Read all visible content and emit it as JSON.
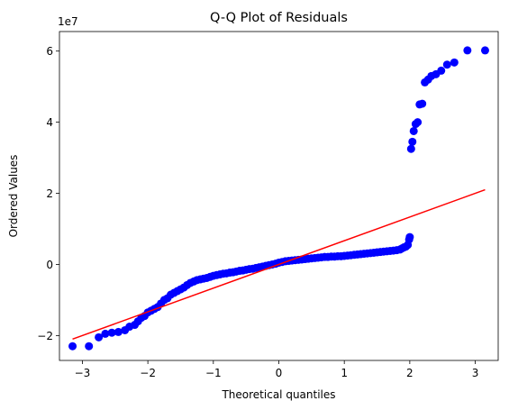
{
  "chart_data": {
    "type": "scatter",
    "title": "Q-Q Plot of Residuals",
    "xlabel": "Theoretical quantiles",
    "ylabel": "Ordered Values",
    "y_offset_text": "1e7",
    "xlim": [
      -3.35,
      3.35
    ],
    "ylim": [
      -2.7,
      6.55
    ],
    "x_ticks": [
      -3,
      -2,
      -1,
      0,
      1,
      2,
      3
    ],
    "x_tick_labels": [
      "−3",
      "−2",
      "−1",
      "0",
      "1",
      "2",
      "3"
    ],
    "y_ticks": [
      -2,
      0,
      2,
      4,
      6
    ],
    "y_tick_labels": [
      "−2",
      "0",
      "2",
      "4",
      "6"
    ],
    "grid": false,
    "colors": {
      "points": "#0000ff",
      "fit_line": "#ff0000",
      "axes": "#000000"
    },
    "fit_line": {
      "x": [
        -3.15,
        3.15
      ],
      "y": [
        -2.1,
        2.1
      ]
    },
    "series": [
      {
        "x": [
          -3.15,
          -2.9,
          -2.75,
          -2.65,
          -2.55,
          -2.45,
          -2.35,
          -2.28,
          -2.2,
          -2.15,
          -2.1,
          -2.05,
          -2.0,
          -1.95,
          -1.9,
          -1.85,
          -1.8,
          -1.75,
          -1.7,
          -1.65,
          -1.6,
          -1.55,
          -1.5,
          -1.45,
          -1.4,
          -1.35,
          -1.3,
          -1.25,
          -1.2,
          -1.15,
          -1.1,
          -1.05,
          -1.0,
          -0.95,
          -0.9,
          -0.85,
          -0.8,
          -0.75,
          -0.7,
          -0.65,
          -0.6,
          -0.55,
          -0.5,
          -0.45,
          -0.4,
          -0.35,
          -0.3,
          -0.25,
          -0.2,
          -0.15,
          -0.1,
          -0.05,
          0.0,
          0.05,
          0.1,
          0.15,
          0.2,
          0.25,
          0.3,
          0.35,
          0.4,
          0.45,
          0.5,
          0.55,
          0.6,
          0.65,
          0.7,
          0.75,
          0.8,
          0.85,
          0.9,
          0.95,
          1.0,
          1.05,
          1.1,
          1.15,
          1.2,
          1.25,
          1.3,
          1.35,
          1.4,
          1.45,
          1.5,
          1.55,
          1.6,
          1.65,
          1.7,
          1.75,
          1.8,
          1.85,
          1.88,
          1.91,
          1.94,
          1.97,
          1.99,
          2.0,
          2.02,
          2.04,
          2.06,
          2.09,
          2.12,
          2.15,
          2.19,
          2.23,
          2.28,
          2.33,
          2.4,
          2.48,
          2.57,
          2.68,
          2.88,
          3.15
        ],
        "y": [
          -2.3,
          -2.3,
          -2.05,
          -1.95,
          -1.92,
          -1.9,
          -1.85,
          -1.75,
          -1.7,
          -1.6,
          -1.5,
          -1.45,
          -1.35,
          -1.3,
          -1.25,
          -1.2,
          -1.1,
          -1.0,
          -0.95,
          -0.85,
          -0.8,
          -0.75,
          -0.7,
          -0.65,
          -0.58,
          -0.52,
          -0.48,
          -0.44,
          -0.42,
          -0.4,
          -0.38,
          -0.35,
          -0.32,
          -0.3,
          -0.28,
          -0.26,
          -0.25,
          -0.23,
          -0.22,
          -0.2,
          -0.18,
          -0.17,
          -0.15,
          -0.13,
          -0.12,
          -0.1,
          -0.08,
          -0.06,
          -0.04,
          -0.02,
          0.0,
          0.02,
          0.05,
          0.07,
          0.09,
          0.1,
          0.11,
          0.12,
          0.13,
          0.14,
          0.15,
          0.16,
          0.17,
          0.18,
          0.19,
          0.2,
          0.21,
          0.21,
          0.22,
          0.22,
          0.23,
          0.23,
          0.24,
          0.25,
          0.26,
          0.27,
          0.28,
          0.29,
          0.3,
          0.31,
          0.32,
          0.33,
          0.34,
          0.35,
          0.36,
          0.37,
          0.38,
          0.39,
          0.4,
          0.42,
          0.45,
          0.48,
          0.5,
          0.55,
          0.7,
          0.77,
          3.25,
          3.45,
          3.75,
          3.95,
          4.0,
          4.5,
          4.52,
          5.12,
          5.2,
          5.3,
          5.35,
          5.45,
          5.62,
          5.68,
          6.02,
          6.02
        ]
      }
    ]
  }
}
